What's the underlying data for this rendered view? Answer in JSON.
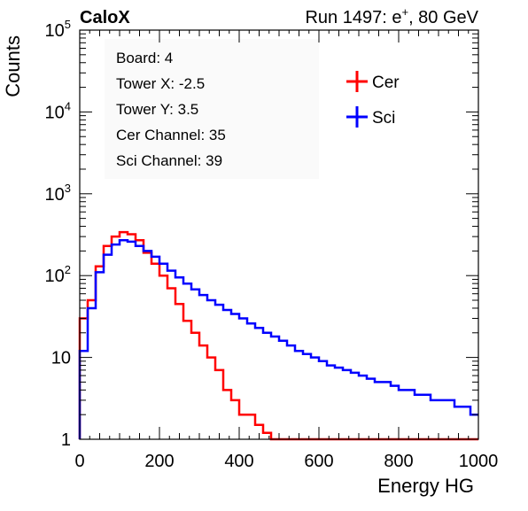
{
  "header": {
    "brand": "CaloX",
    "run_text": "Run 1497: e",
    "run_sup": "+",
    "run_tail": ", 80 GeV"
  },
  "info_box": {
    "lines": [
      "Board: 4",
      "Tower X: -2.5",
      "Tower Y: 3.5",
      "Cer Channel: 35",
      "Sci Channel: 39"
    ]
  },
  "colors": {
    "cer": "#ff0000",
    "sci": "#0000ff",
    "axis": "#000000"
  },
  "chart_data": {
    "type": "line",
    "xlabel": "Energy HG",
    "ylabel": "Counts",
    "xlim": [
      0,
      1000
    ],
    "ylim": [
      1,
      100000
    ],
    "yscale": "log",
    "x_ticks": [
      0,
      200,
      400,
      600,
      800,
      1000
    ],
    "y_ticks": [
      {
        "value": 1,
        "base": "1",
        "exp": ""
      },
      {
        "value": 10,
        "base": "10",
        "exp": ""
      },
      {
        "value": 100,
        "base": "10",
        "exp": "2"
      },
      {
        "value": 1000,
        "base": "10",
        "exp": "3"
      },
      {
        "value": 10000,
        "base": "10",
        "exp": "4"
      },
      {
        "value": 100000,
        "base": "10",
        "exp": "5"
      }
    ],
    "grid": false,
    "legend_position": "top-right",
    "bin_width": 20,
    "x": [
      10,
      30,
      50,
      70,
      90,
      110,
      130,
      150,
      170,
      190,
      210,
      230,
      250,
      270,
      290,
      310,
      330,
      350,
      370,
      390,
      410,
      430,
      450,
      470,
      490,
      510,
      530,
      550,
      570,
      590,
      610,
      630,
      650,
      670,
      690,
      710,
      730,
      750,
      770,
      790,
      810,
      830,
      850,
      870,
      890,
      910,
      930,
      950,
      970,
      990
    ],
    "series": [
      {
        "name": "Cer",
        "color": "#ff0000",
        "values": [
          30,
          50,
          130,
          230,
          300,
          340,
          320,
          270,
          190,
          140,
          100,
          70,
          45,
          28,
          20,
          14,
          10,
          7,
          4,
          3,
          2,
          2,
          1.5,
          1.2,
          1,
          1,
          1,
          1,
          1,
          1,
          1,
          1,
          1,
          1,
          1,
          1,
          1,
          1,
          1,
          1,
          1,
          1,
          1,
          1,
          1,
          1,
          1,
          1,
          1,
          1
        ]
      },
      {
        "name": "Sci",
        "color": "#0000ff",
        "values": [
          12,
          40,
          110,
          180,
          240,
          270,
          260,
          230,
          200,
          170,
          140,
          115,
          95,
          80,
          68,
          58,
          50,
          44,
          38,
          34,
          30,
          26,
          23,
          20,
          18,
          16,
          14,
          12,
          11,
          10,
          9,
          8,
          7.5,
          7,
          6.5,
          6,
          5.5,
          5,
          5,
          4.5,
          4,
          4,
          3.5,
          3.5,
          3,
          3,
          3,
          2.5,
          2.5,
          2
        ]
      }
    ]
  }
}
